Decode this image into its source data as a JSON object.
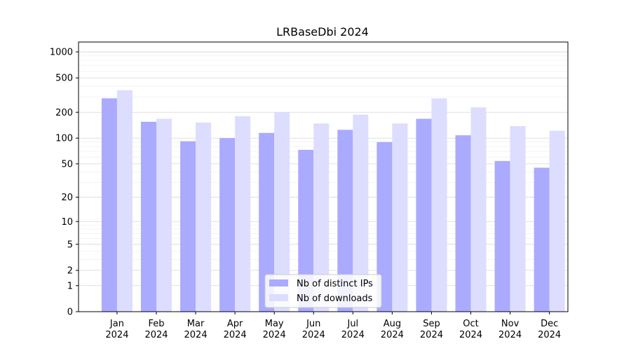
{
  "chart_data": {
    "type": "bar",
    "title": "LRBaseDbi 2024",
    "xlabel": "",
    "ylabel": "",
    "yscale": "log(1+y)",
    "ylim": [
      0,
      1300
    ],
    "y_ticks": [
      0,
      1,
      2,
      5,
      10,
      20,
      50,
      100,
      200,
      500,
      1000
    ],
    "y_tick_labels": [
      "0",
      "1",
      "2",
      "5",
      "10",
      "20",
      "50",
      "100",
      "200",
      "500",
      "1000"
    ],
    "categories": [
      "Jan",
      "Feb",
      "Mar",
      "Apr",
      "May",
      "Jun",
      "Jul",
      "Aug",
      "Sep",
      "Oct",
      "Nov",
      "Dec"
    ],
    "category_year": "2024",
    "series": [
      {
        "name": "Nb of distinct IPs",
        "color": "#aaaaff",
        "values": [
          290,
          155,
          92,
          100,
          115,
          73,
          125,
          90,
          168,
          108,
          54,
          45
        ]
      },
      {
        "name": "Nb of downloads",
        "color": "#ddddff",
        "values": [
          360,
          168,
          152,
          180,
          200,
          148,
          188,
          148,
          290,
          228,
          138,
          122
        ]
      }
    ],
    "grid": true,
    "legend": "bottom-center"
  }
}
